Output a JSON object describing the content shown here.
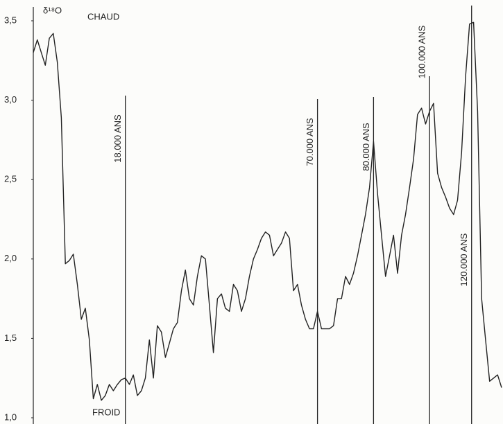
{
  "chart_data": {
    "type": "line",
    "y_label": "δ¹⁸O",
    "annotations": [
      "CHAUD",
      "FROID"
    ],
    "markers": [
      "18.000 ANS",
      "70.000 ANS",
      "80.000 ANS",
      "100.000 ANS",
      "120.000 ANS"
    ],
    "categories": [
      null,
      null,
      null,
      null,
      null,
      null,
      null,
      null,
      null,
      null,
      null,
      null,
      null,
      null,
      null,
      null,
      null,
      null,
      null,
      null,
      null,
      null,
      null,
      null,
      null,
      null,
      null,
      null,
      null,
      null,
      null,
      null,
      null,
      null,
      null,
      null,
      null,
      null,
      null,
      null,
      null,
      null,
      null,
      null,
      null,
      null,
      null,
      null,
      null,
      null,
      null,
      null,
      null,
      null,
      null,
      null,
      null,
      null,
      null,
      null,
      null,
      null,
      null,
      null,
      null,
      null,
      null,
      null,
      null,
      null,
      null,
      null,
      null,
      null,
      null,
      null,
      null,
      null,
      null,
      null,
      null,
      null,
      null,
      null,
      null,
      null,
      null,
      null,
      null,
      null,
      null,
      null,
      null,
      null,
      null,
      null,
      null,
      null,
      null,
      null,
      null,
      null,
      null,
      null,
      null,
      null,
      null,
      null,
      null,
      null,
      null,
      null,
      null,
      null,
      null,
      null,
      null,
      null
    ],
    "values": [
      3.3,
      3.38,
      3.3,
      3.22,
      3.39,
      3.42,
      3.24,
      2.89,
      1.97,
      1.99,
      2.03,
      1.84,
      1.62,
      1.69,
      1.49,
      1.12,
      1.21,
      1.11,
      1.14,
      1.21,
      1.17,
      1.21,
      1.24,
      1.25,
      1.21,
      1.27,
      1.14,
      1.17,
      1.25,
      1.49,
      1.25,
      1.58,
      1.54,
      1.38,
      1.47,
      1.56,
      1.6,
      1.8,
      1.93,
      1.75,
      1.71,
      1.89,
      2.02,
      2.0,
      1.71,
      1.41,
      1.75,
      1.78,
      1.69,
      1.67,
      1.84,
      1.8,
      1.67,
      1.75,
      1.89,
      2.0,
      2.06,
      2.13,
      2.17,
      2.15,
      2.02,
      2.06,
      2.1,
      2.17,
      2.13,
      1.8,
      1.84,
      1.71,
      1.62,
      1.56,
      1.56,
      1.67,
      1.56,
      1.56,
      1.56,
      1.58,
      1.75,
      1.75,
      1.89,
      1.84,
      1.91,
      2.02,
      2.15,
      2.28,
      2.45,
      2.74,
      2.41,
      2.15,
      1.89,
      2.02,
      2.15,
      1.91,
      2.15,
      2.28,
      2.45,
      2.63,
      2.91,
      2.95,
      2.85,
      2.93,
      2.98,
      2.54,
      2.45,
      2.39,
      2.32,
      2.28,
      2.37,
      2.67,
      3.15,
      3.48,
      3.49,
      2.93,
      1.75,
      1.49,
      1.23,
      1.25,
      1.27,
      1.19
    ],
    "color": "#222222",
    "ylim": [
      1.0,
      3.5
    ],
    "yticks": [
      {
        "value": 1.0,
        "label": "1,0"
      },
      {
        "value": 1.5,
        "label": "1,5"
      },
      {
        "value": 2.0,
        "label": "2,0"
      },
      {
        "value": 2.5,
        "label": "2,5"
      },
      {
        "value": 3.0,
        "label": "3,0"
      },
      {
        "value": 3.5,
        "label": "3,5"
      }
    ],
    "grid": false
  }
}
